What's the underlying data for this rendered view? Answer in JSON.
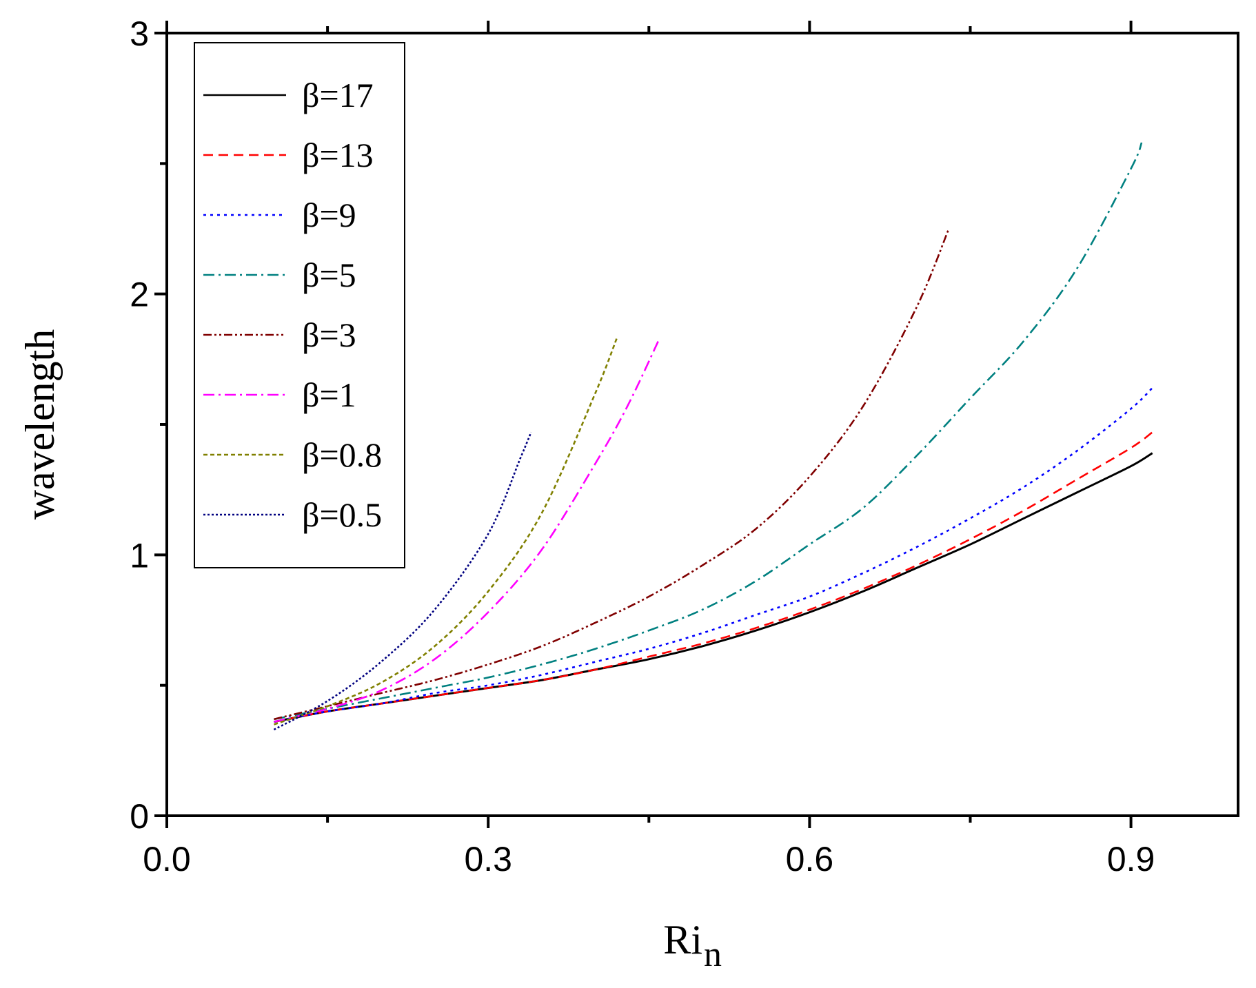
{
  "chart_data": {
    "type": "line",
    "title": "",
    "xlabel": "Ri",
    "xlabel_subscript": "n",
    "ylabel": "wavelength",
    "xlim": [
      0.0,
      1.0
    ],
    "ylim": [
      0,
      3
    ],
    "x_ticks": [
      "0.0",
      "0.3",
      "0.6",
      "0.9"
    ],
    "y_ticks": [
      "0",
      "1",
      "2",
      "3"
    ],
    "grid": false,
    "legend_position": "top-left",
    "series": [
      {
        "name": "β=17",
        "color": "#000000",
        "dash": "solid",
        "x": [
          0.1,
          0.15,
          0.2,
          0.25,
          0.3,
          0.35,
          0.4,
          0.45,
          0.5,
          0.55,
          0.6,
          0.65,
          0.7,
          0.75,
          0.8,
          0.85,
          0.9,
          0.92
        ],
        "y": [
          0.36,
          0.4,
          0.43,
          0.46,
          0.49,
          0.52,
          0.56,
          0.6,
          0.65,
          0.71,
          0.78,
          0.86,
          0.95,
          1.04,
          1.14,
          1.24,
          1.34,
          1.39
        ]
      },
      {
        "name": "β=13",
        "color": "#ff0000",
        "dash": "dash",
        "x": [
          0.1,
          0.15,
          0.2,
          0.25,
          0.3,
          0.35,
          0.4,
          0.45,
          0.5,
          0.55,
          0.6,
          0.65,
          0.7,
          0.75,
          0.8,
          0.85,
          0.9,
          0.92
        ],
        "y": [
          0.36,
          0.4,
          0.43,
          0.46,
          0.49,
          0.52,
          0.56,
          0.61,
          0.66,
          0.72,
          0.79,
          0.87,
          0.96,
          1.06,
          1.17,
          1.29,
          1.41,
          1.47
        ]
      },
      {
        "name": "β=9",
        "color": "#0000ff",
        "dash": "dot",
        "x": [
          0.1,
          0.15,
          0.2,
          0.25,
          0.3,
          0.35,
          0.4,
          0.45,
          0.5,
          0.55,
          0.6,
          0.65,
          0.7,
          0.75,
          0.8,
          0.85,
          0.9,
          0.92
        ],
        "y": [
          0.36,
          0.4,
          0.43,
          0.47,
          0.5,
          0.54,
          0.59,
          0.64,
          0.7,
          0.77,
          0.84,
          0.93,
          1.03,
          1.14,
          1.26,
          1.4,
          1.56,
          1.64
        ]
      },
      {
        "name": "β=5",
        "color": "#008080",
        "dash": "dashdot",
        "x": [
          0.1,
          0.15,
          0.2,
          0.25,
          0.3,
          0.35,
          0.4,
          0.45,
          0.5,
          0.55,
          0.6,
          0.65,
          0.7,
          0.75,
          0.8,
          0.85,
          0.9,
          0.91
        ],
        "y": [
          0.37,
          0.41,
          0.45,
          0.49,
          0.53,
          0.58,
          0.64,
          0.71,
          0.79,
          0.9,
          1.04,
          1.18,
          1.38,
          1.6,
          1.82,
          2.1,
          2.48,
          2.58
        ]
      },
      {
        "name": "β=3",
        "color": "#800000",
        "dash": "dashdotdot",
        "x": [
          0.1,
          0.15,
          0.2,
          0.25,
          0.3,
          0.35,
          0.4,
          0.45,
          0.5,
          0.55,
          0.6,
          0.65,
          0.7,
          0.73
        ],
        "y": [
          0.37,
          0.42,
          0.47,
          0.52,
          0.58,
          0.65,
          0.74,
          0.84,
          0.96,
          1.1,
          1.3,
          1.57,
          1.95,
          2.25
        ]
      },
      {
        "name": "β=1",
        "color": "#ff00ff",
        "dash": "dashdot",
        "x": [
          0.1,
          0.15,
          0.2,
          0.25,
          0.3,
          0.35,
          0.4,
          0.43,
          0.46
        ],
        "y": [
          0.36,
          0.41,
          0.48,
          0.6,
          0.78,
          1.02,
          1.35,
          1.57,
          1.83
        ]
      },
      {
        "name": "β=0.8",
        "color": "#808000",
        "dash": "shortdash",
        "x": [
          0.1,
          0.15,
          0.2,
          0.25,
          0.3,
          0.35,
          0.4,
          0.42
        ],
        "y": [
          0.35,
          0.42,
          0.51,
          0.65,
          0.86,
          1.16,
          1.62,
          1.83
        ]
      },
      {
        "name": "β=0.5",
        "color": "#000080",
        "dash": "shortdot",
        "x": [
          0.1,
          0.15,
          0.2,
          0.25,
          0.3,
          0.33,
          0.34
        ],
        "y": [
          0.33,
          0.44,
          0.59,
          0.79,
          1.08,
          1.37,
          1.47
        ]
      }
    ]
  }
}
